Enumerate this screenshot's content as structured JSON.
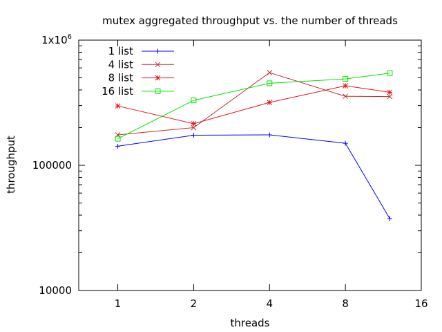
{
  "chart_data": {
    "type": "line",
    "title": "mutex aggregated throughput vs. the number of threads",
    "xlabel": "threads",
    "ylabel": "throughput",
    "x_scale": "log2",
    "y_scale": "log10",
    "xlim": [
      0.7,
      16
    ],
    "ylim": [
      10000,
      1000000
    ],
    "x_ticks": [
      {
        "value": 1,
        "label": "1"
      },
      {
        "value": 2,
        "label": "2"
      },
      {
        "value": 4,
        "label": "4"
      },
      {
        "value": 8,
        "label": "8"
      },
      {
        "value": 16,
        "label": "16"
      }
    ],
    "y_ticks": [
      {
        "value": 10000,
        "label": "10000"
      },
      {
        "value": 100000,
        "label": "100000"
      },
      {
        "value": 1000000,
        "label": "1x10",
        "sup": "6"
      }
    ],
    "x": [
      1,
      2,
      4,
      8,
      12
    ],
    "series": [
      {
        "name": "1 list",
        "color": "#0000ff",
        "marker": "plus",
        "values": [
          142000,
          174000,
          175000,
          150000,
          37500
        ]
      },
      {
        "name": "4 list",
        "color": "#bf2f2f",
        "marker": "cross",
        "values": [
          175000,
          200000,
          550000,
          356000,
          354000
        ]
      },
      {
        "name": "8 list",
        "color": "#e8141e",
        "marker": "star",
        "values": [
          298000,
          215000,
          318000,
          432000,
          383000
        ]
      },
      {
        "name": "16 list",
        "color": "#00e600",
        "marker": "square",
        "values": [
          163000,
          330000,
          452000,
          490000,
          545000
        ]
      }
    ],
    "grid": false,
    "legend": "top-left"
  }
}
